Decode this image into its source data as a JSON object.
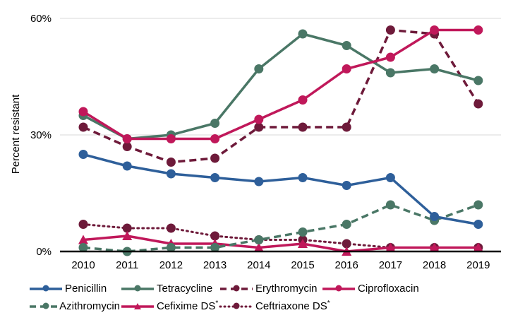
{
  "chart_data": {
    "type": "line",
    "title": "",
    "xlabel": "",
    "ylabel": "Percent resistant",
    "ylim": [
      0,
      60
    ],
    "yticks": [
      0,
      30,
      60
    ],
    "ytick_labels": [
      "0%",
      "30%",
      "60%"
    ],
    "grid": true,
    "legend_placement": "bottom",
    "x": [
      "2010",
      "2011",
      "2012",
      "2013",
      "2014",
      "2015",
      "2016",
      "2017",
      "2018",
      "2019"
    ],
    "series": [
      {
        "name": "Penicillin",
        "superscript": "",
        "color": "#2e5f9a",
        "dash": "solid",
        "marker": "circle",
        "values": [
          25,
          22,
          20,
          19,
          18,
          19,
          17,
          19,
          9,
          7
        ]
      },
      {
        "name": "Tetracycline",
        "superscript": "",
        "color": "#4a7766",
        "dash": "solid",
        "marker": "circle",
        "values": [
          35,
          29,
          30,
          33,
          47,
          56,
          53,
          46,
          47,
          44
        ]
      },
      {
        "name": "Erythromycin",
        "superscript": "",
        "color": "#6e1a3a",
        "dash": "dashed",
        "marker": "circle",
        "values": [
          32,
          27,
          23,
          24,
          32,
          32,
          32,
          57,
          56,
          38
        ]
      },
      {
        "name": "Ciprofloxacin",
        "superscript": "",
        "color": "#c0185a",
        "dash": "solid",
        "marker": "circle",
        "values": [
          36,
          29,
          29,
          29,
          34,
          39,
          47,
          50,
          57,
          57
        ]
      },
      {
        "name": "Azithromycin",
        "superscript": "",
        "color": "#4a7766",
        "dash": "dashed",
        "marker": "circle",
        "values": [
          1,
          0,
          1,
          1,
          3,
          5,
          7,
          12,
          8,
          12
        ]
      },
      {
        "name": "Cefixime DS",
        "superscript": "*",
        "color": "#c0185a",
        "dash": "solid",
        "marker": "triangle",
        "values": [
          3,
          4,
          2,
          2,
          1,
          2,
          0,
          1,
          1,
          1
        ]
      },
      {
        "name": "Ceftriaxone DS",
        "superscript": "*",
        "color": "#6e1a3a",
        "dash": "dotted",
        "marker": "circle",
        "values": [
          7,
          6,
          6,
          4,
          3,
          3,
          2,
          1,
          1,
          1
        ]
      }
    ],
    "legend_rows": [
      [
        0,
        1,
        2,
        3
      ],
      [
        4,
        5,
        6
      ]
    ]
  }
}
